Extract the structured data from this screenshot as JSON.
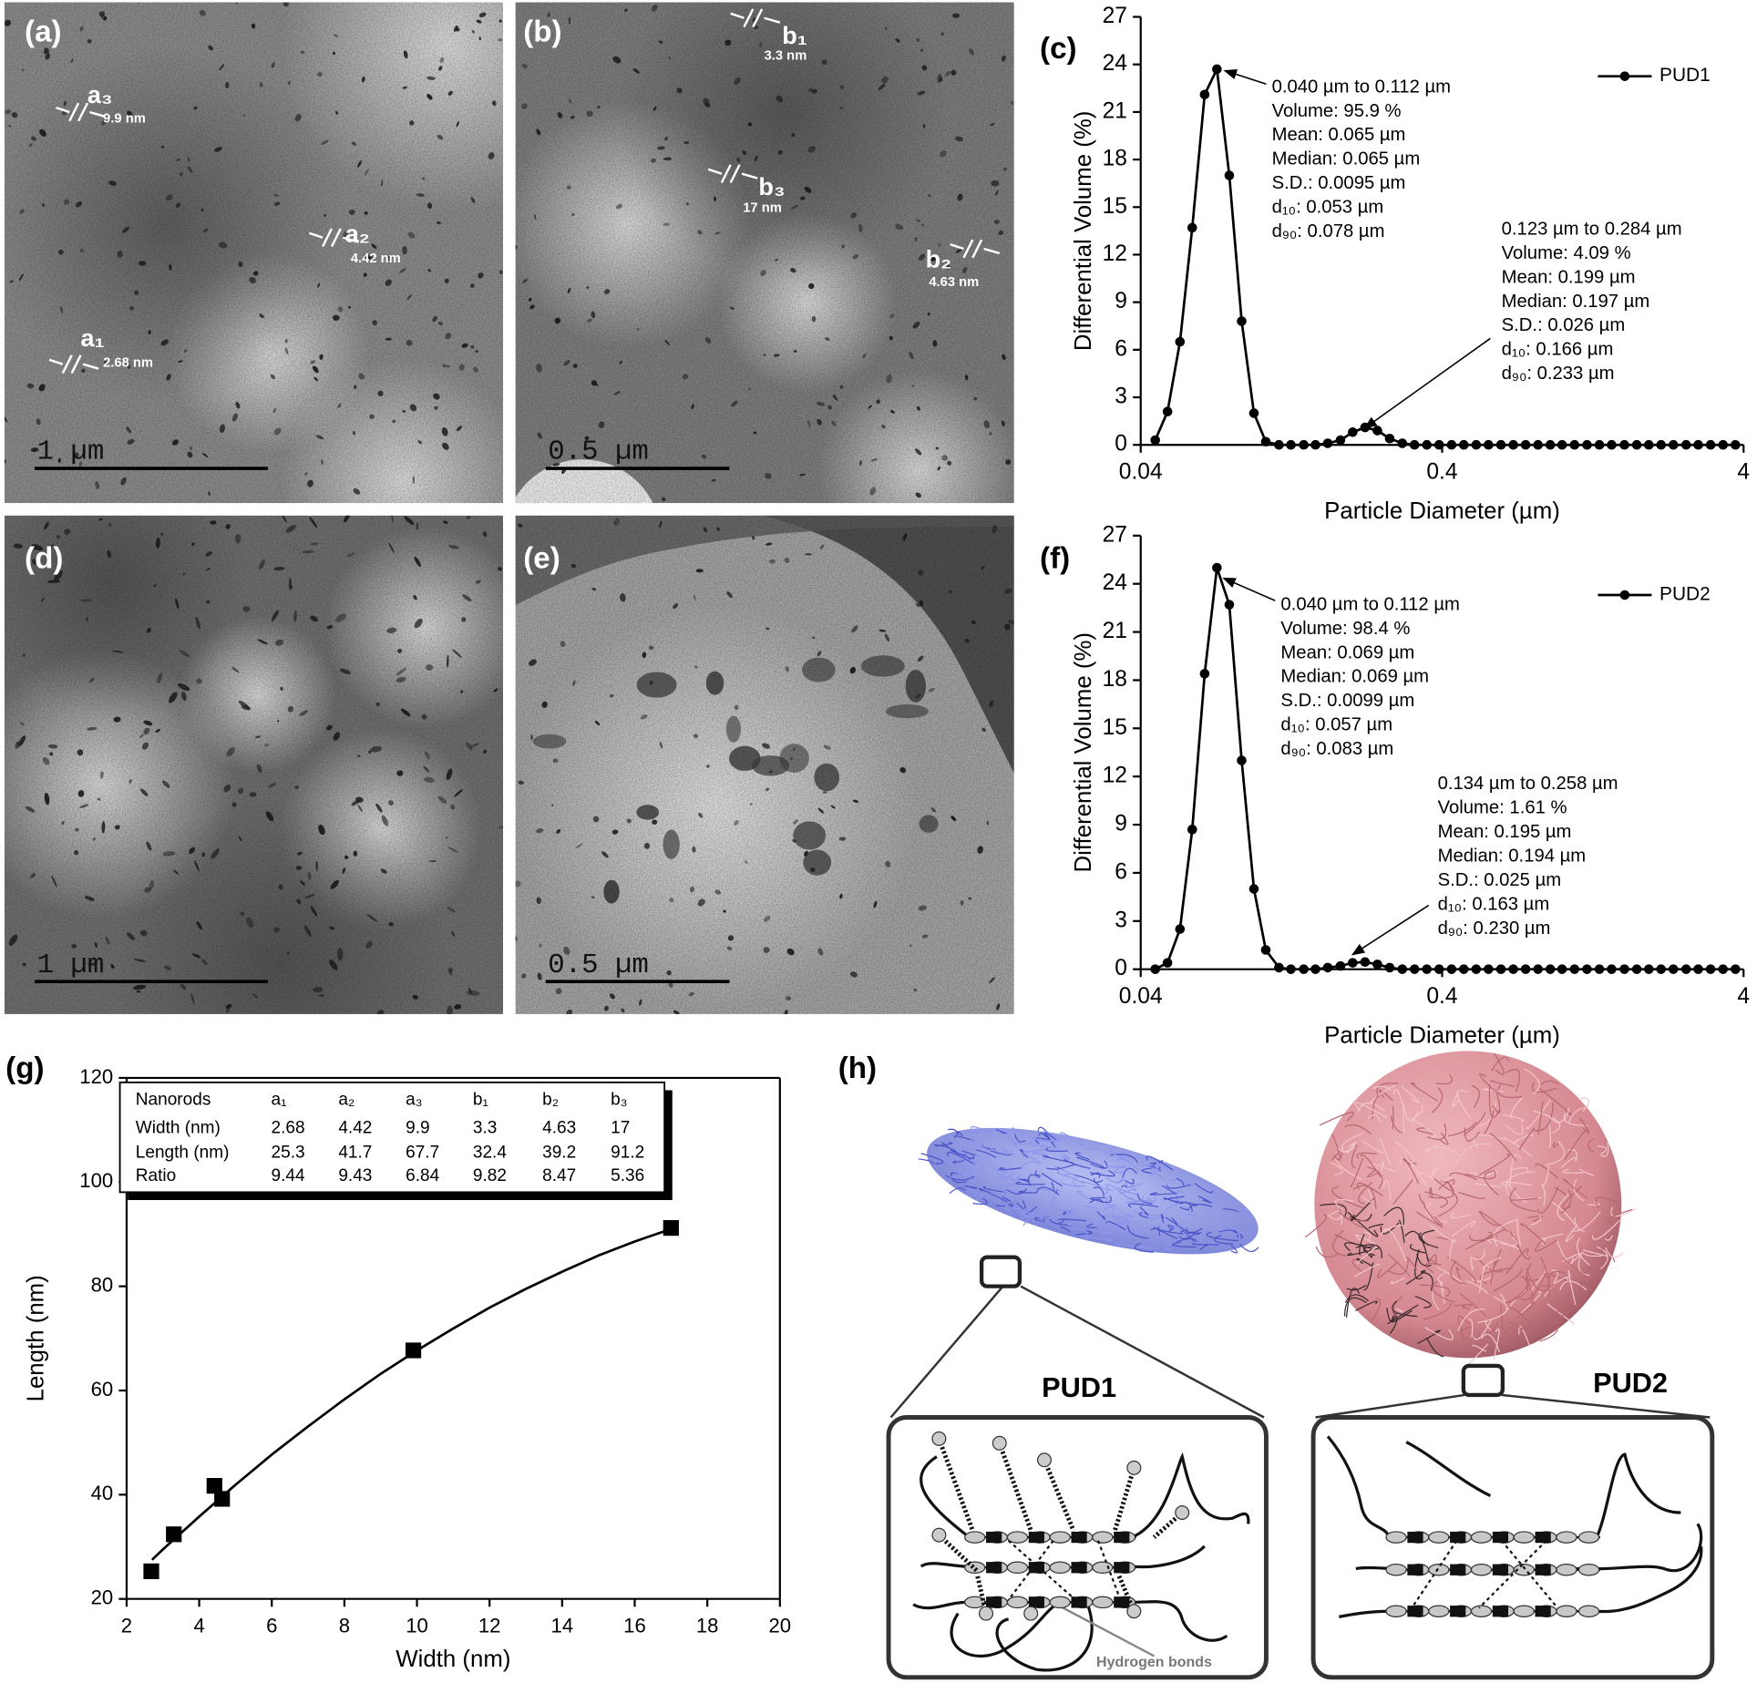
{
  "panel_labels": [
    "(a)",
    "(b)",
    "(c)",
    "(d)",
    "(e)",
    "(f)",
    "(g)",
    "(h)"
  ],
  "tem_images": [
    {
      "scale_bar": "1 µm",
      "nanorods": [
        {
          "label": "a₃",
          "width": "9.9 nm"
        },
        {
          "label": "a₂",
          "width": "4.42 nm"
        },
        {
          "label": "a₁",
          "width": "2.68 nm"
        }
      ]
    },
    {
      "scale_bar": "0.5 µm",
      "nanorods": [
        {
          "label": "b₁",
          "width": "3.3 nm"
        },
        {
          "label": "b₃",
          "width": "17 nm"
        },
        {
          "label": "b₂",
          "width": "4.63 nm"
        }
      ]
    },
    {
      "scale_bar": "1 µm",
      "nanorods": []
    },
    {
      "scale_bar": "0.5 µm",
      "nanorods": []
    }
  ],
  "chart_data": [
    {
      "type": "line",
      "xlabel": "Particle Diameter (µm)",
      "ylabel": "Differential Volume (%)",
      "xscale": "log",
      "frame": "open",
      "legend": "upper right",
      "x": [
        0.0447,
        0.0491,
        0.054,
        0.0593,
        0.0652,
        0.0716,
        0.0787,
        0.0865,
        0.095,
        0.104,
        0.115,
        0.126,
        0.139,
        0.152,
        0.167,
        0.184,
        0.202,
        0.222,
        0.244,
        0.268,
        0.295,
        0.324,
        0.356,
        0.391,
        0.43,
        0.472,
        0.519,
        0.57,
        0.627,
        0.689,
        0.757,
        0.832,
        0.914,
        1.0,
        1.1,
        1.21,
        1.33,
        1.46,
        1.61,
        1.77,
        1.94,
        2.13,
        2.34,
        2.58,
        2.83,
        3.11,
        3.42,
        3.76
      ],
      "series": [
        {
          "name": "PUD1",
          "color": "#000000",
          "values": [
            0.3,
            2.1,
            6.5,
            13.7,
            22.1,
            23.7,
            17.0,
            7.8,
            2.0,
            0.2,
            0,
            0,
            0,
            0,
            0.1,
            0.3,
            0.8,
            1.1,
            0.9,
            0.4,
            0.1,
            0,
            0,
            0,
            0,
            0,
            0,
            0,
            0,
            0,
            0,
            0,
            0,
            0,
            0,
            0,
            0,
            0,
            0,
            0,
            0,
            0,
            0,
            0,
            0,
            0,
            0,
            0
          ]
        }
      ],
      "xlim": [
        0.04,
        4
      ],
      "xticks": [
        0.04,
        0.4,
        4
      ],
      "ylim": [
        0,
        27
      ],
      "yticks": [
        0,
        3,
        6,
        9,
        12,
        15,
        18,
        21,
        24,
        27
      ],
      "annotations": [
        {
          "lines": [
            "0.040 µm to 0.112 µm",
            "Volume: 95.9 %",
            "Mean: 0.065 µm",
            "Median: 0.065 µm",
            "S.D.: 0.0095 µm",
            "d₁₀: 0.053 µm",
            "d₉₀: 0.078 µm"
          ]
        },
        {
          "lines": [
            "0.123 µm to 0.284 µm",
            "Volume: 4.09 %",
            "Mean: 0.199 µm",
            "Median: 0.197 µm",
            "S.D.: 0.026 µm",
            "d₁₀: 0.166 µm",
            "d₉₀: 0.233 µm"
          ]
        }
      ]
    },
    {
      "type": "line",
      "xlabel": "Particle Diameter (µm)",
      "ylabel": "Differential Volume (%)",
      "xscale": "log",
      "frame": "open",
      "legend": "upper right",
      "x": [
        0.0447,
        0.0491,
        0.054,
        0.0593,
        0.0652,
        0.0716,
        0.0787,
        0.0865,
        0.095,
        0.104,
        0.115,
        0.126,
        0.139,
        0.152,
        0.167,
        0.184,
        0.202,
        0.222,
        0.244,
        0.268,
        0.295,
        0.324,
        0.356,
        0.391,
        0.43,
        0.472,
        0.519,
        0.57,
        0.627,
        0.689,
        0.757,
        0.832,
        0.914,
        1.0,
        1.1,
        1.21,
        1.33,
        1.46,
        1.61,
        1.77,
        1.94,
        2.13,
        2.34,
        2.58,
        2.83,
        3.11,
        3.42,
        3.76
      ],
      "series": [
        {
          "name": "PUD2",
          "color": "#000000",
          "values": [
            0,
            0.4,
            2.5,
            8.7,
            18.4,
            25.0,
            22.7,
            13.0,
            5.0,
            1.2,
            0.1,
            0,
            0,
            0,
            0.1,
            0.2,
            0.4,
            0.45,
            0.3,
            0.1,
            0,
            0,
            0,
            0,
            0,
            0,
            0,
            0,
            0,
            0,
            0,
            0,
            0,
            0,
            0,
            0,
            0,
            0,
            0,
            0,
            0,
            0,
            0,
            0,
            0,
            0,
            0,
            0
          ]
        }
      ],
      "xlim": [
        0.04,
        4
      ],
      "xticks": [
        0.04,
        0.4,
        4
      ],
      "ylim": [
        0,
        27
      ],
      "yticks": [
        0,
        3,
        6,
        9,
        12,
        15,
        18,
        21,
        24,
        27
      ],
      "annotations": [
        {
          "lines": [
            "0.040 µm to 0.112 µm",
            "Volume: 98.4 %",
            "Mean: 0.069 µm",
            "Median: 0.069 µm",
            "S.D.: 0.0099 µm",
            "d₁₀: 0.057 µm",
            "d₉₀: 0.083 µm"
          ]
        },
        {
          "lines": [
            "0.134 µm to 0.258 µm",
            "Volume: 1.61 %",
            "Mean: 0.195 µm",
            "Median: 0.194 µm",
            "S.D.: 0.025 µm",
            "d₁₀: 0.163 µm",
            "d₉₀: 0.230 µm"
          ]
        }
      ]
    },
    {
      "type": "scatter",
      "xlabel": "Width (nm)",
      "ylabel": "Length (nm)",
      "frame": "box",
      "x": [
        2.68,
        4.42,
        9.9,
        3.3,
        4.63,
        17
      ],
      "series": [
        {
          "color": "#000000",
          "values": [
            25.3,
            41.7,
            67.7,
            32.4,
            39.2,
            91.2
          ]
        }
      ],
      "fit": {
        "x": [
          2.7,
          3,
          4,
          5,
          6,
          7,
          8,
          9,
          10,
          11,
          12,
          13,
          14,
          15,
          16,
          17
        ],
        "y": [
          27.5,
          29.5,
          35.8,
          41.9,
          47.7,
          53.1,
          58.3,
          63.2,
          67.7,
          71.9,
          75.9,
          79.5,
          82.8,
          85.9,
          88.6,
          91.0
        ]
      },
      "xlim": [
        2,
        20
      ],
      "xticks": [
        2,
        4,
        6,
        8,
        10,
        12,
        14,
        16,
        18,
        20
      ],
      "ylim": [
        20,
        120
      ],
      "yticks": [
        20,
        40,
        60,
        80,
        100,
        120
      ],
      "table": {
        "header": [
          "Nanorods",
          "a₁",
          "a₂",
          "a₃",
          "b₁",
          "b₂",
          "b₃"
        ],
        "row_labels": [
          "Width (nm)",
          "Length (nm)",
          "Ratio"
        ],
        "ratio": [
          9.44,
          9.43,
          6.84,
          9.82,
          8.47,
          5.36
        ]
      }
    }
  ],
  "diagram": {
    "labels": [
      "PUD1",
      "PUD2"
    ],
    "hydrogen_bonds": "Hydrogen bonds"
  }
}
